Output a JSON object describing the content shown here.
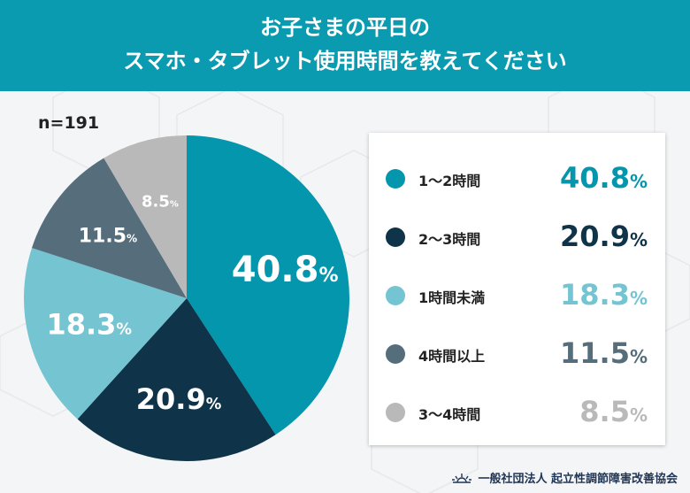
{
  "header": {
    "line1": "お子さまの平日の",
    "line2": "スマホ・タブレット使用時間を教えてください"
  },
  "sample": "n=191",
  "chart_data": {
    "type": "pie",
    "categories": [
      "1〜2時間",
      "2〜3時間",
      "1時間未満",
      "4時間以上",
      "3〜4時間"
    ],
    "values": [
      40.8,
      20.9,
      18.3,
      11.5,
      8.5
    ],
    "unit": "%",
    "colors": [
      "#0396ad",
      "#0f3349",
      "#74c4d2",
      "#566d7b",
      "#b9b9b9"
    ],
    "value_colors": [
      "#0396ad",
      "#0f3349",
      "#74c4d2",
      "#566d7b",
      "#b9b9b9"
    ],
    "legend_placement": "right"
  },
  "footer": {
    "org": "一般社団法人 起立性調節障害改善協会"
  }
}
